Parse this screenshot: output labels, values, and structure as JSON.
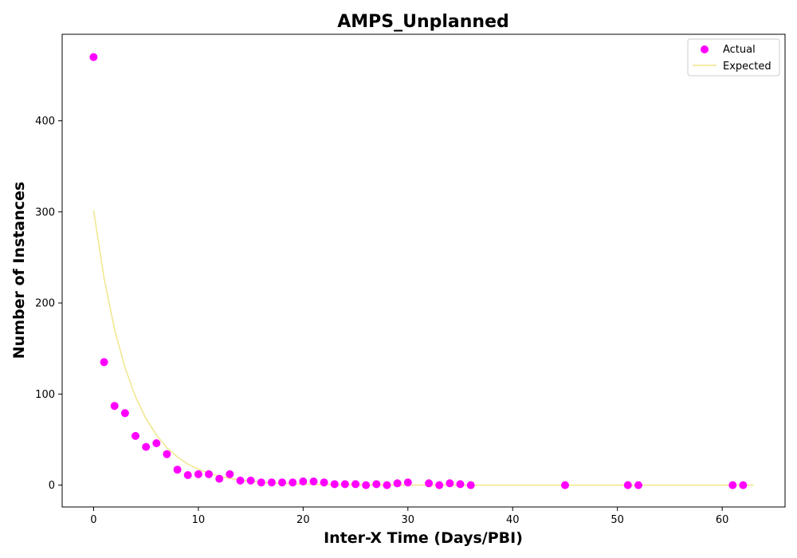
{
  "chart_data": {
    "type": "scatter",
    "title": "AMPS_Unplanned",
    "xlabel": "Inter-X Time (Days/PBI)",
    "ylabel": "Number of Instances",
    "xlim": [
      -3,
      66
    ],
    "ylim": [
      -24,
      495
    ],
    "xticks": [
      0,
      10,
      20,
      30,
      40,
      50,
      60
    ],
    "yticks": [
      0,
      100,
      200,
      300,
      400
    ],
    "grid": false,
    "legend_position": "top-right",
    "colors": {
      "actual": "#ff00ff",
      "expected": "#f0e68c"
    },
    "series": [
      {
        "name": "Actual",
        "kind": "scatter",
        "x": [
          0,
          1,
          2,
          3,
          4,
          5,
          6,
          7,
          8,
          9,
          10,
          11,
          12,
          13,
          14,
          15,
          16,
          17,
          18,
          19,
          20,
          21,
          22,
          23,
          24,
          25,
          26,
          27,
          28,
          29,
          30,
          32,
          33,
          34,
          35,
          36,
          45,
          51,
          52,
          61,
          62
        ],
        "y": [
          470,
          135,
          87,
          79,
          54,
          42,
          46,
          34,
          17,
          11,
          12,
          12,
          7,
          12,
          5,
          5,
          3,
          3,
          3,
          3,
          4,
          4,
          3,
          1,
          1,
          1,
          0,
          1,
          0,
          2,
          3,
          2,
          0,
          2,
          1,
          0,
          0,
          0,
          0,
          0,
          0
        ]
      },
      {
        "name": "Expected",
        "kind": "line",
        "x": [
          0,
          1,
          2,
          3,
          4,
          5,
          6,
          7,
          8,
          9,
          10,
          11,
          12,
          13,
          14,
          15,
          16,
          17,
          18,
          19,
          20,
          21,
          22,
          23,
          24,
          25,
          26,
          27,
          28,
          29,
          30,
          31,
          32,
          33,
          34,
          35,
          36,
          37,
          38,
          39,
          40,
          41,
          42,
          43,
          44,
          45,
          46,
          47,
          48,
          49,
          50,
          51,
          52,
          53,
          54,
          55,
          56,
          57,
          58,
          59,
          60,
          61,
          62,
          63
        ],
        "y": [
          302,
          227,
          171,
          129,
          97,
          73,
          55,
          41,
          31,
          23,
          17.5,
          13,
          9.8,
          7.4,
          5.6,
          4.2,
          3.2,
          2.4,
          1.8,
          1.35,
          1,
          0.76,
          0.57,
          0.43,
          0.32,
          0.24,
          0.18,
          0.14,
          0.1,
          0.08,
          0.06,
          0.05,
          0.03,
          0.03,
          0.02,
          0.01,
          0.01,
          0.01,
          0,
          0,
          0,
          0,
          0,
          0,
          0,
          0,
          0,
          0,
          0,
          0,
          0,
          0,
          0,
          0,
          0,
          0,
          0,
          0,
          0,
          0,
          0,
          0,
          0,
          0
        ]
      }
    ]
  }
}
